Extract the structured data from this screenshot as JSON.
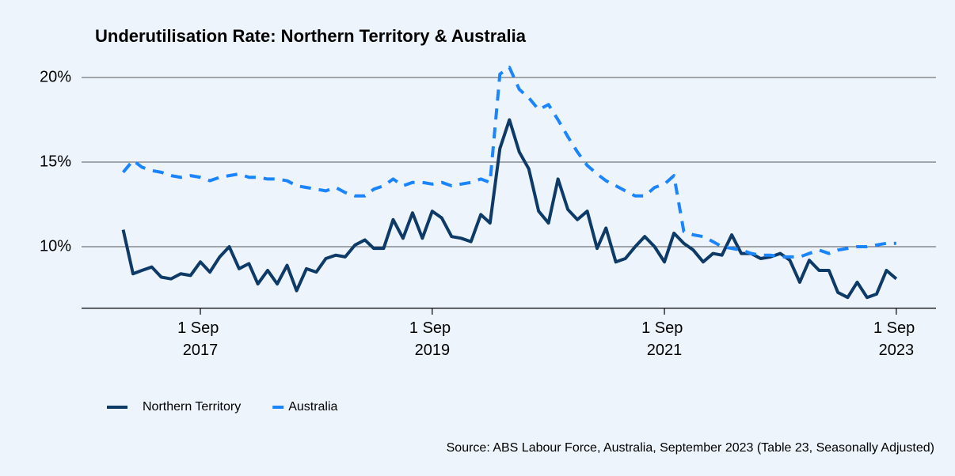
{
  "chart_data": {
    "type": "line",
    "title": "Underutilisation Rate: Northern Territory & Australia",
    "source": "Source: ABS Labour Force, Australia, September 2023 (Table 23, Seasonally Adjusted)",
    "x": [
      "2017-01-01",
      "2017-02-01",
      "2017-03-01",
      "2017-04-01",
      "2017-05-01",
      "2017-06-01",
      "2017-07-01",
      "2017-08-01",
      "2017-09-01",
      "2017-10-01",
      "2017-11-01",
      "2017-12-01",
      "2018-01-01",
      "2018-02-01",
      "2018-03-01",
      "2018-04-01",
      "2018-05-01",
      "2018-06-01",
      "2018-07-01",
      "2018-08-01",
      "2018-09-01",
      "2018-10-01",
      "2018-11-01",
      "2018-12-01",
      "2019-01-01",
      "2019-02-01",
      "2019-03-01",
      "2019-04-01",
      "2019-05-01",
      "2019-06-01",
      "2019-07-01",
      "2019-08-01",
      "2019-09-01",
      "2019-10-01",
      "2019-11-01",
      "2019-12-01",
      "2020-01-01",
      "2020-02-01",
      "2020-03-01",
      "2020-04-01",
      "2020-05-01",
      "2020-06-01",
      "2020-07-01",
      "2020-08-01",
      "2020-09-01",
      "2020-10-01",
      "2020-11-01",
      "2020-12-01",
      "2021-01-01",
      "2021-02-01",
      "2021-03-01",
      "2021-04-01",
      "2021-05-01",
      "2021-06-01",
      "2021-07-01",
      "2021-08-01",
      "2021-09-01",
      "2021-10-01",
      "2021-11-01",
      "2021-12-01",
      "2022-01-01",
      "2022-02-01",
      "2022-03-01",
      "2022-04-01",
      "2022-05-01",
      "2022-06-01",
      "2022-07-01",
      "2022-08-01",
      "2022-09-01",
      "2022-10-01",
      "2022-11-01",
      "2022-12-01",
      "2023-01-01",
      "2023-02-01",
      "2023-03-01",
      "2023-04-01",
      "2023-05-01",
      "2023-06-01",
      "2023-07-01",
      "2023-08-01",
      "2023-09-01"
    ],
    "series": [
      {
        "name": "Northern Territory",
        "color": "#0d3a66",
        "dashed": false,
        "values": [
          11.0,
          8.4,
          8.6,
          8.8,
          8.2,
          8.1,
          8.4,
          8.3,
          9.1,
          8.5,
          9.4,
          10.0,
          8.7,
          9.0,
          7.8,
          8.6,
          7.8,
          8.9,
          7.4,
          8.7,
          8.5,
          9.3,
          9.5,
          9.4,
          10.1,
          10.4,
          9.9,
          9.9,
          11.6,
          10.5,
          12.0,
          10.5,
          12.1,
          11.7,
          10.6,
          10.5,
          10.3,
          11.9,
          11.4,
          15.8,
          17.5,
          15.6,
          14.6,
          12.1,
          11.4,
          14.0,
          12.2,
          11.6,
          12.1,
          9.9,
          11.1,
          9.1,
          9.3,
          10.0,
          10.6,
          10.0,
          9.1,
          10.8,
          10.2,
          9.8,
          9.1,
          9.6,
          9.5,
          10.7,
          9.6,
          9.6,
          9.3,
          9.4,
          9.6,
          9.2,
          7.9,
          9.2,
          8.6,
          8.6,
          7.3,
          7.0,
          7.9,
          7.0,
          7.2,
          8.6,
          8.1
        ]
      },
      {
        "name": "Australia",
        "color": "#1a85ff",
        "dashed": true,
        "values": [
          14.4,
          15.1,
          14.7,
          14.5,
          14.4,
          14.2,
          14.1,
          14.2,
          14.1,
          13.9,
          14.1,
          14.2,
          14.3,
          14.1,
          14.1,
          14.0,
          14.0,
          13.9,
          13.6,
          13.5,
          13.4,
          13.3,
          13.5,
          13.2,
          13.0,
          13.0,
          13.4,
          13.6,
          14.0,
          13.6,
          13.8,
          13.8,
          13.7,
          13.8,
          13.6,
          13.7,
          13.8,
          14.0,
          13.8,
          20.2,
          20.6,
          19.3,
          18.8,
          18.1,
          18.4,
          17.5,
          16.5,
          15.6,
          14.8,
          14.3,
          13.9,
          13.6,
          13.3,
          13.0,
          13.0,
          13.5,
          13.7,
          14.2,
          10.9,
          10.7,
          10.6,
          10.3,
          10.0,
          9.9,
          9.8,
          9.6,
          9.5,
          9.5,
          9.4,
          9.4,
          9.4,
          9.6,
          9.8,
          9.6,
          9.8,
          9.9,
          10.0,
          10.0,
          10.1,
          10.2,
          10.2
        ]
      }
    ],
    "xlim": [
      "2016-08-23",
      "2024-01-04"
    ],
    "xticks": [
      {
        "value": "2017-09-01",
        "label": "1 Sep 2017"
      },
      {
        "value": "2019-09-01",
        "label": "1 Sep 2019"
      },
      {
        "value": "2021-09-01",
        "label": "1 Sep 2021"
      },
      {
        "value": "2023-09-01",
        "label": "1 Sep 2023"
      }
    ],
    "ylim": [
      6.36,
      20.8
    ],
    "yticks": [
      {
        "value": 10,
        "label": "10%"
      },
      {
        "value": 15,
        "label": "15%"
      },
      {
        "value": 20,
        "label": "20%"
      }
    ],
    "grid": true,
    "legend": "bottom"
  }
}
